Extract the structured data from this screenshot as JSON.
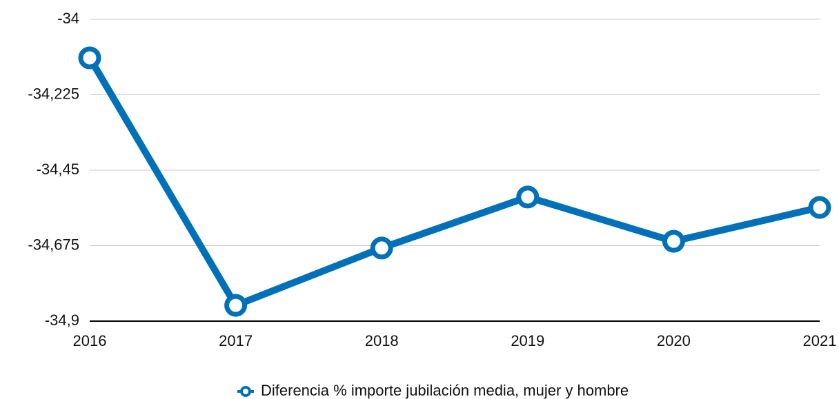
{
  "chart_data": {
    "type": "line",
    "categories": [
      "2016",
      "2017",
      "2018",
      "2019",
      "2020",
      "2021"
    ],
    "series": [
      {
        "name": "Diferencia % importe jubilación media, mujer y hombre",
        "color": "#0071b8",
        "values": [
          -34.115,
          -34.853,
          -34.682,
          -34.53,
          -34.662,
          -34.561
        ]
      }
    ],
    "ylim": [
      -34.9,
      -34
    ],
    "yticks": [
      -34,
      {
        "value": -34.225,
        "label": "-34,225"
      },
      {
        "value": -34.45,
        "label": "-34,45"
      },
      {
        "value": -34.675,
        "label": "-34,675"
      },
      {
        "value": -34.9,
        "label": "-34,9"
      }
    ],
    "grid": true,
    "legend": "bottom"
  }
}
